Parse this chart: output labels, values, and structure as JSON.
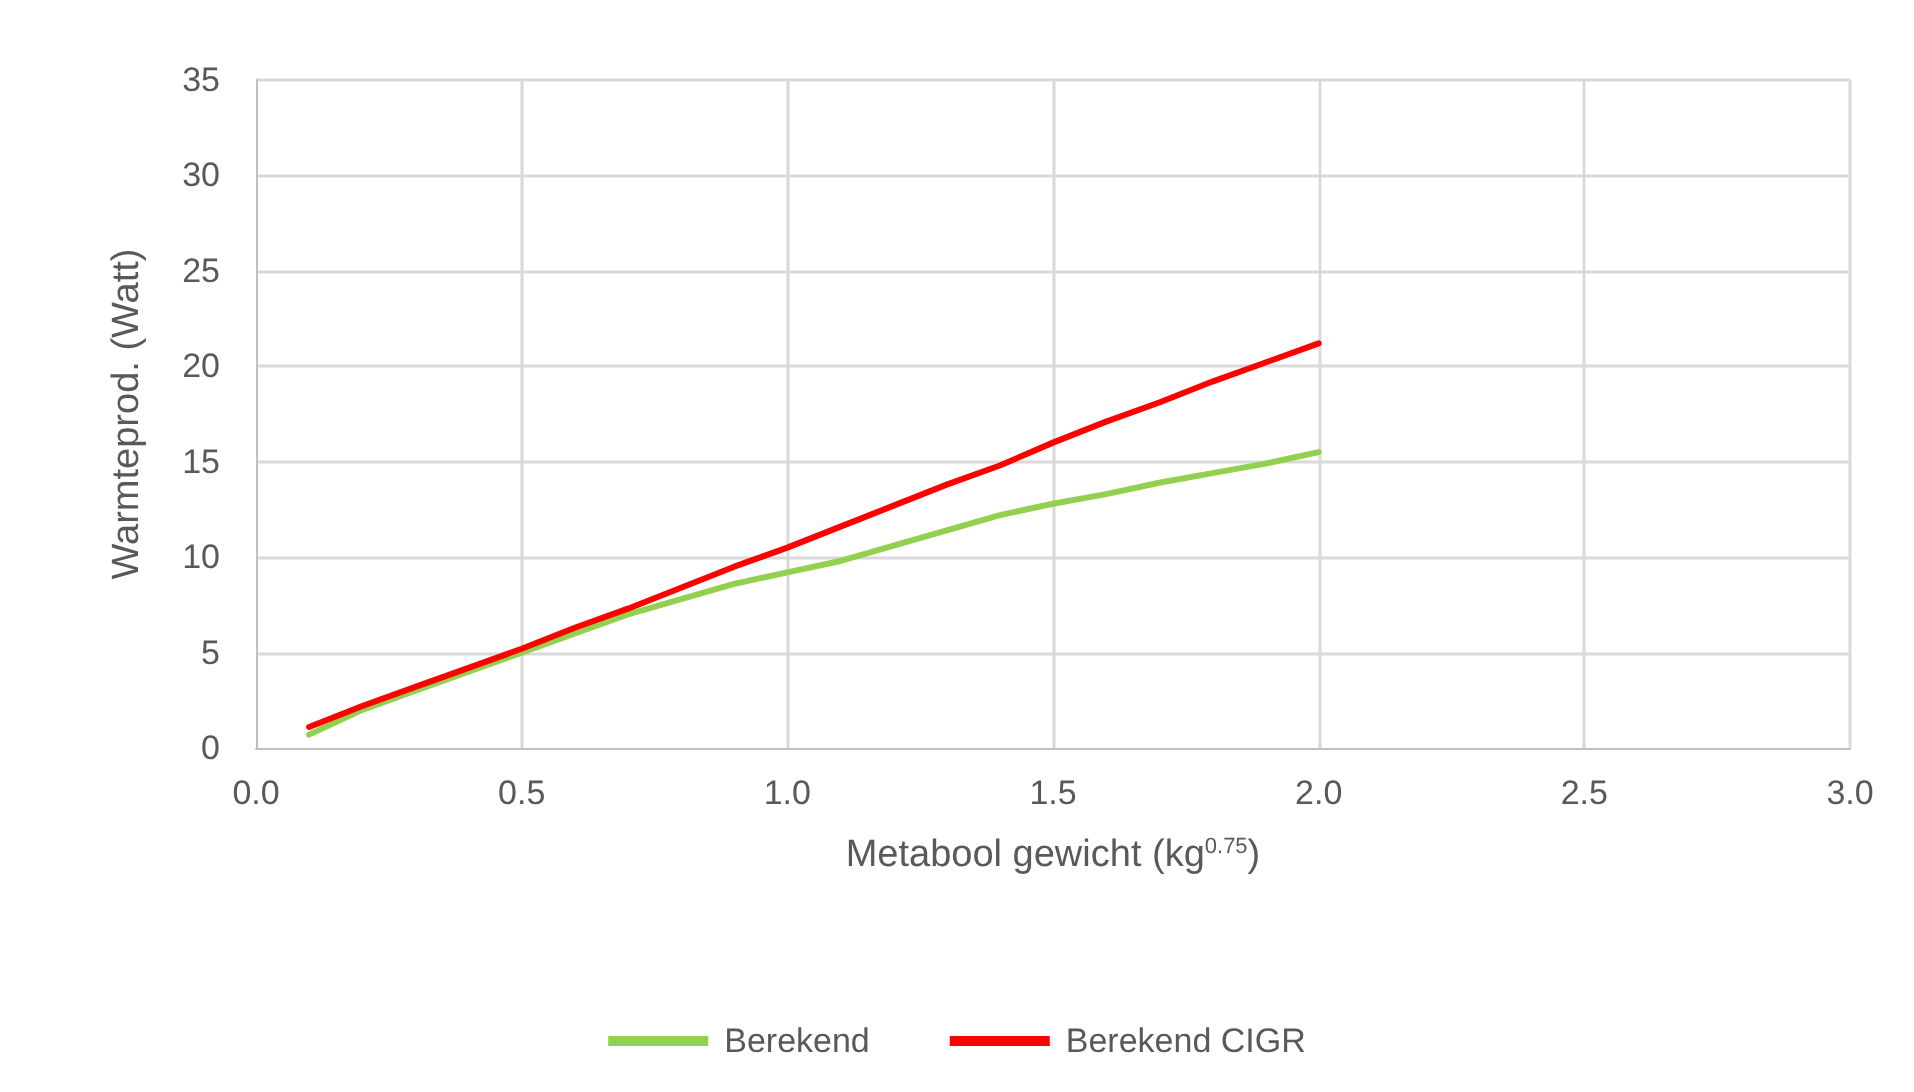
{
  "chart_data": {
    "type": "line",
    "xlabel": "Metabool gewicht (kg$^{0.75}$)",
    "ylabel": "Warmteprod. (Watt)",
    "x": [
      0.1,
      0.2,
      0.3,
      0.4,
      0.5,
      0.6,
      0.7,
      0.8,
      0.9,
      1.0,
      1.1,
      1.2,
      1.3,
      1.4,
      1.5,
      1.6,
      1.7,
      1.8,
      1.9,
      2.0
    ],
    "series": [
      {
        "name": "Berekend",
        "color": "#92d050",
        "values": [
          0.7,
          2.0,
          3.0,
          4.0,
          5.0,
          6.0,
          7.0,
          7.8,
          8.6,
          9.2,
          9.8,
          10.6,
          11.4,
          12.2,
          12.8,
          13.3,
          13.9,
          14.4,
          14.9,
          15.5
        ]
      },
      {
        "name": "Berekend CIGR",
        "color": "#ff0000",
        "values": [
          1.1,
          2.2,
          3.2,
          4.2,
          5.2,
          6.3,
          7.3,
          8.4,
          9.5,
          10.5,
          11.6,
          12.7,
          13.8,
          14.8,
          16.0,
          17.1,
          18.1,
          19.2,
          20.2,
          21.2
        ]
      }
    ],
    "xlim": [
      0,
      3
    ],
    "xticks": [
      {
        "value": 0,
        "label": "0.0"
      },
      {
        "value": 0.5,
        "label": "0.5"
      },
      {
        "value": 1,
        "label": "1.0"
      },
      {
        "value": 1.5,
        "label": "1.5"
      },
      {
        "value": 2,
        "label": "2.0"
      },
      {
        "value": 2.5,
        "label": "2.5"
      },
      {
        "value": 3,
        "label": "3.0"
      }
    ],
    "ylim": [
      0,
      35
    ],
    "yticks": [
      0,
      5,
      10,
      15,
      20,
      25,
      30,
      35
    ],
    "grid": true,
    "legend": "bottom",
    "marker": "none",
    "line_style": "solid"
  }
}
